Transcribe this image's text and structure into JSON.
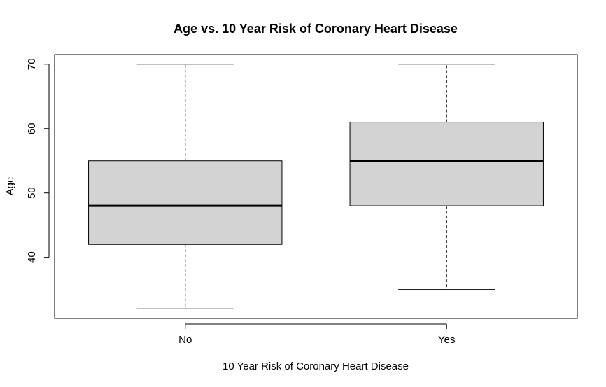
{
  "chart_data": {
    "type": "boxplot",
    "title": "Age vs. 10 Year Risk of Coronary Heart Disease",
    "xlabel": "10 Year Risk of Coronary Heart Disease",
    "ylabel": "Age",
    "categories": [
      "No",
      "Yes"
    ],
    "boxes": [
      {
        "category": "No",
        "min": 32,
        "q1": 42,
        "median": 48,
        "q3": 55,
        "max": 70
      },
      {
        "category": "Yes",
        "min": 35,
        "q1": 48,
        "median": 55,
        "q3": 61,
        "max": 70
      }
    ],
    "yticks": [
      40,
      50,
      60,
      70
    ],
    "ylim": [
      30.5,
      71.5
    ],
    "box_fill": "#d3d3d3",
    "grid": false
  }
}
